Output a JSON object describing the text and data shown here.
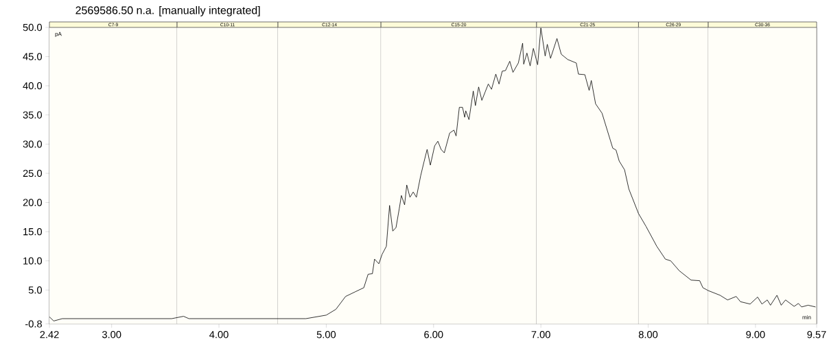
{
  "chart_data": {
    "type": "line",
    "title": "2569586.50 n.a.  [manually integrated]",
    "xlabel": "min",
    "ylabel": "pA",
    "x": [
      2.42,
      2.46,
      2.54,
      3.56,
      3.67,
      3.72,
      4.81,
      5.0,
      5.09,
      5.18,
      5.27,
      5.35,
      5.39,
      5.43,
      5.45,
      5.49,
      5.52,
      5.56,
      5.59,
      5.62,
      5.65,
      5.68,
      5.7,
      5.73,
      5.75,
      5.78,
      5.81,
      5.84,
      5.88,
      5.91,
      5.94,
      5.97,
      6.01,
      6.04,
      6.07,
      6.1,
      6.15,
      6.19,
      6.21,
      6.24,
      6.27,
      6.29,
      6.3,
      6.33,
      6.37,
      6.39,
      6.42,
      6.45,
      6.48,
      6.51,
      6.54,
      6.58,
      6.61,
      6.64,
      6.67,
      6.71,
      6.74,
      6.79,
      6.83,
      6.84,
      6.87,
      6.9,
      6.93,
      6.97,
      7.0,
      7.04,
      7.06,
      7.09,
      7.15,
      7.19,
      7.25,
      7.33,
      7.35,
      7.41,
      7.45,
      7.47,
      7.51,
      7.57,
      7.67,
      7.7,
      7.73,
      7.78,
      7.82,
      7.91,
      7.98,
      8.08,
      8.16,
      8.21,
      8.29,
      8.4,
      8.48,
      8.51,
      8.56,
      8.67,
      8.74,
      8.82,
      8.86,
      8.95,
      9.02,
      9.06,
      9.11,
      9.14,
      9.2,
      9.24,
      9.28,
      9.36,
      9.4,
      9.43,
      9.49,
      9.56
    ],
    "series": [
      {
        "color": "#000000",
        "values": [
          0.4,
          -0.3,
          0.1,
          0.1,
          0.5,
          0.1,
          0.1,
          0.7,
          1.7,
          3.9,
          4.7,
          5.4,
          7.7,
          7.8,
          10.3,
          9.5,
          11.1,
          12.5,
          19.5,
          15.1,
          15.7,
          18.9,
          21.2,
          19.6,
          23.0,
          20.9,
          21.8,
          20.9,
          24.6,
          26.9,
          29.1,
          26.4,
          29.7,
          30.5,
          29.1,
          28.5,
          31.9,
          32.4,
          31.4,
          36.3,
          36.3,
          34.6,
          35.7,
          34.2,
          39.1,
          36.6,
          39.8,
          37.5,
          38.9,
          40.3,
          39.4,
          42.0,
          40.3,
          42.5,
          42.6,
          44.2,
          42.3,
          43.9,
          47.3,
          43.7,
          45.6,
          43.4,
          46.4,
          43.6,
          49.9,
          45.1,
          47.1,
          44.7,
          48.1,
          45.4,
          44.5,
          43.9,
          42.0,
          41.9,
          39.2,
          40.9,
          36.9,
          35.3,
          29.3,
          29.0,
          27.1,
          25.6,
          22.3,
          18.1,
          15.9,
          12.5,
          10.3,
          10.0,
          8.3,
          6.7,
          6.6,
          5.4,
          4.9,
          4.1,
          3.3,
          3.9,
          3.0,
          2.6,
          3.8,
          2.6,
          3.3,
          2.4,
          4.1,
          2.4,
          3.3,
          2.2,
          2.7,
          2.1,
          2.4,
          2.1
        ]
      }
    ],
    "xlim": [
      2.42,
      9.57
    ],
    "ylim": [
      -0.8,
      50
    ],
    "xticks": [
      2.42,
      {
        "value": 3,
        "label": "3.00"
      },
      {
        "value": 4,
        "label": "4.00"
      },
      {
        "value": 5,
        "label": "5.00"
      },
      {
        "value": 6,
        "label": "6.00"
      },
      {
        "value": 7,
        "label": "7.00"
      },
      {
        "value": 8,
        "label": "8.00"
      },
      {
        "value": 9,
        "label": "9.00"
      },
      9.57
    ],
    "yticks": [
      -0.8,
      {
        "value": 5,
        "label": "5.0"
      },
      {
        "value": 10,
        "label": "10.0"
      },
      {
        "value": 15,
        "label": "15.0"
      },
      {
        "value": 20,
        "label": "20.0"
      },
      {
        "value": 25,
        "label": "25.0"
      },
      {
        "value": 30,
        "label": "30.0"
      },
      {
        "value": 35,
        "label": "35.0"
      },
      {
        "value": 40,
        "label": "40.0"
      },
      {
        "value": 45,
        "label": "45.0"
      },
      {
        "value": 50,
        "label": "50.0"
      }
    ],
    "bands": [
      {
        "axis": "x",
        "from": 2.42,
        "to": 3.61,
        "label": "C7-9",
        "color": "#fffef8"
      },
      {
        "axis": "x",
        "from": 3.61,
        "to": 4.55,
        "label": "C10-11",
        "color": "#fffef8"
      },
      {
        "axis": "x",
        "from": 4.55,
        "to": 5.51,
        "label": "C12-14",
        "color": "#fffef8"
      },
      {
        "axis": "x",
        "from": 5.51,
        "to": 6.96,
        "label": "C15-20",
        "color": "#fffef8"
      },
      {
        "axis": "x",
        "from": 6.96,
        "to": 7.91,
        "label": "C21-25",
        "color": "#fffef8"
      },
      {
        "axis": "x",
        "from": 7.91,
        "to": 8.56,
        "label": "C26-29",
        "color": "#fffef8"
      },
      {
        "axis": "x",
        "from": 8.56,
        "to": 9.57,
        "label": "C30-36",
        "color": "#fffef8"
      }
    ],
    "grid": false,
    "line_style": "solid"
  }
}
